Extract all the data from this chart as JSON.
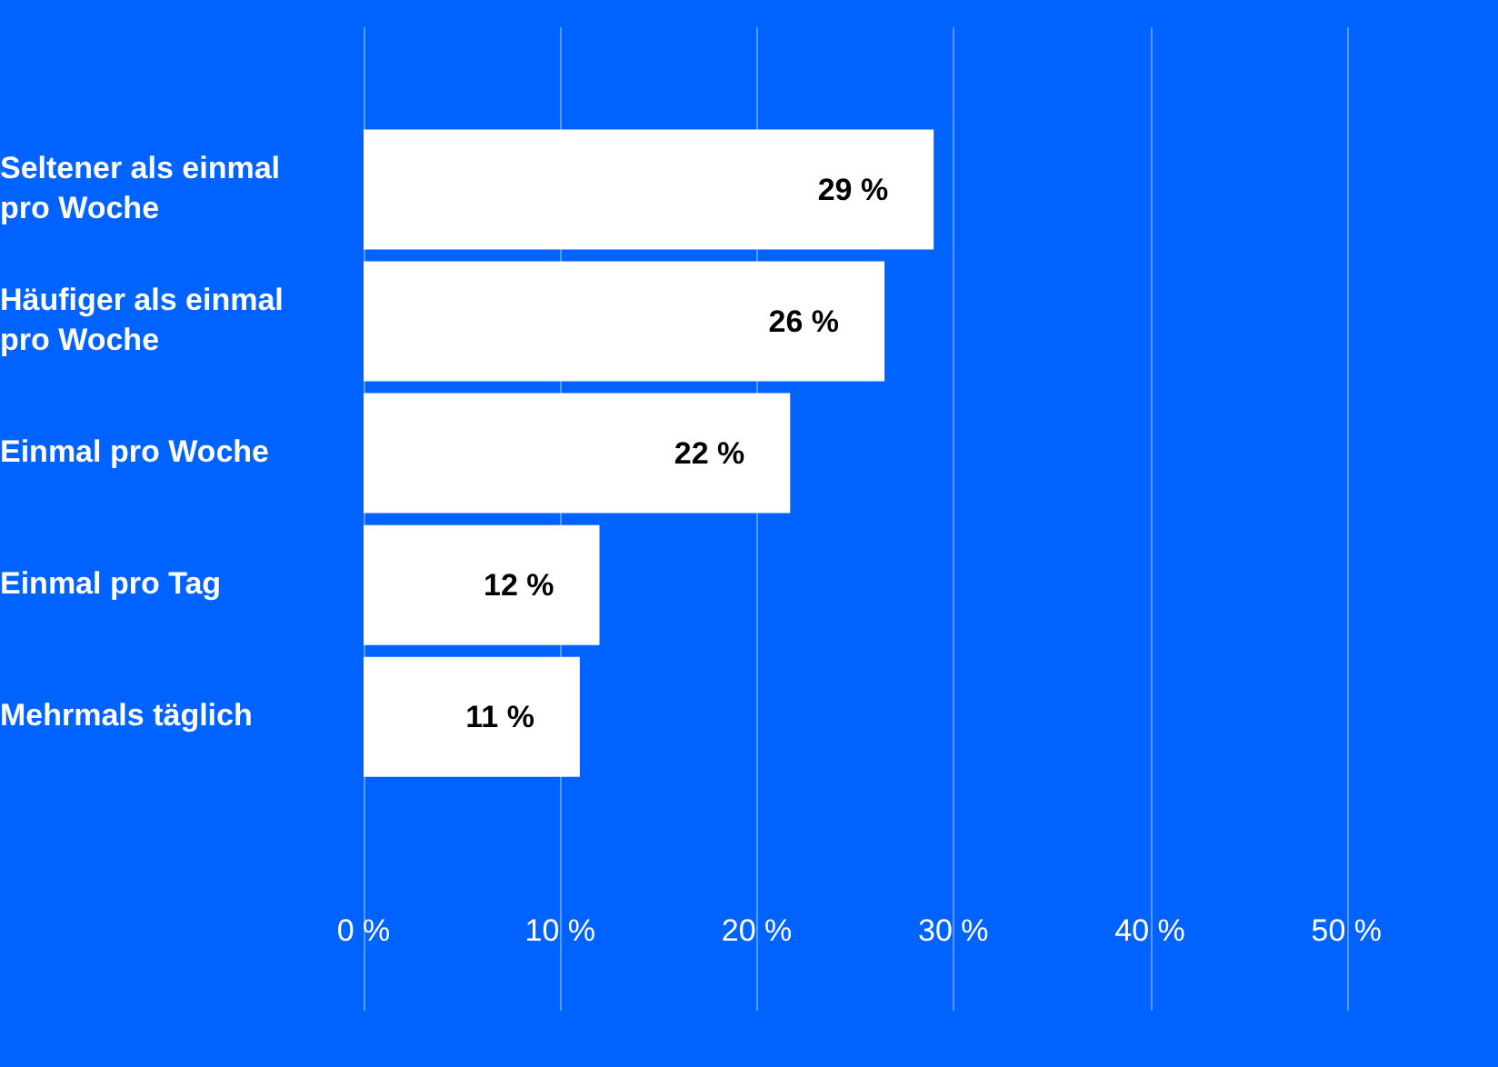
{
  "chart_data": {
    "type": "bar",
    "orientation": "horizontal",
    "categories": [
      "Seltener als einmal pro Woche",
      "Häufiger als einmal pro Woche",
      "Einmal pro Woche",
      "Einmal pro Tag",
      "Mehrmals täglich"
    ],
    "values": [
      29,
      26.5,
      21.7,
      12,
      11
    ],
    "value_labels": [
      "29 %",
      "26 %",
      "22 %",
      "12 %",
      "11 %"
    ],
    "color": "#ffffff",
    "xlim": [
      0,
      50
    ],
    "xticks": [
      {
        "value": 0,
        "label": "0 %"
      },
      {
        "value": 10,
        "label": "10 %"
      },
      {
        "value": 20,
        "label": "20 %"
      },
      {
        "value": 30,
        "label": "30 %"
      },
      {
        "value": 40,
        "label": "40 %"
      },
      {
        "value": 50,
        "label": "50 %"
      }
    ],
    "grid": "x",
    "legend": false
  }
}
